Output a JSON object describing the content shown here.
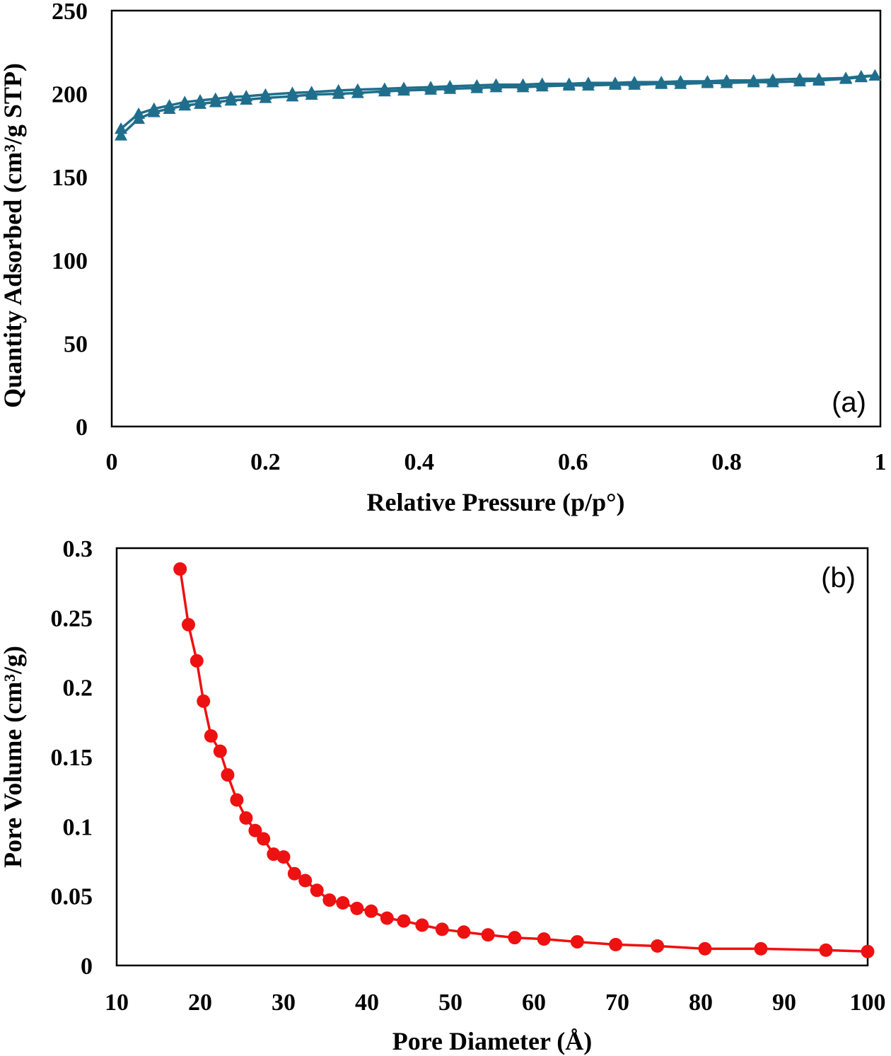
{
  "chart_data": [
    {
      "type": "line",
      "panel_label": "(a)",
      "xlabel": "Relative Pressure (p/p°)",
      "ylabel": "Quantity Adsorbed (cm³/g STP)",
      "xlim": [
        0,
        1
      ],
      "ylim": [
        0,
        250
      ],
      "xticks": [
        0,
        0.2,
        0.4,
        0.6,
        0.8,
        1
      ],
      "xtick_labels": [
        "0",
        "0.2",
        "0.4",
        "0.6",
        "0.8",
        "1"
      ],
      "yticks": [
        0,
        50,
        100,
        150,
        200,
        250
      ],
      "ytick_labels": [
        "0",
        "50",
        "100",
        "150",
        "200",
        "250"
      ],
      "grid": false,
      "color": "#1f6e8c",
      "marker": "triangle",
      "series": [
        {
          "x": [
            0.012,
            0.035,
            0.055,
            0.075,
            0.095,
            0.115,
            0.135,
            0.155,
            0.175,
            0.2,
            0.235,
            0.26,
            0.295,
            0.32,
            0.355,
            0.38,
            0.415,
            0.44,
            0.475,
            0.5,
            0.535,
            0.56,
            0.595,
            0.62,
            0.655,
            0.68,
            0.715,
            0.74,
            0.775,
            0.8,
            0.835,
            0.86,
            0.895,
            0.92,
            0.955,
            0.975,
            0.993
          ],
          "values": [
            175,
            185,
            189,
            191,
            193,
            194,
            195,
            196,
            196.5,
            197.5,
            198.5,
            199.5,
            200,
            200.5,
            201.5,
            202,
            202.5,
            203,
            203.5,
            204,
            204,
            204.5,
            205,
            205,
            205.5,
            205.5,
            206,
            206,
            206.5,
            206.5,
            207,
            207,
            207.5,
            208,
            209,
            210,
            211
          ]
        },
        {
          "x": [
            0.012,
            0.035,
            0.055,
            0.075,
            0.095,
            0.115,
            0.135,
            0.155,
            0.175,
            0.2,
            0.235,
            0.26,
            0.295,
            0.32,
            0.355,
            0.38,
            0.415,
            0.44,
            0.475,
            0.5,
            0.535,
            0.56,
            0.595,
            0.62,
            0.655,
            0.68,
            0.715,
            0.74,
            0.775,
            0.8,
            0.835,
            0.86,
            0.895,
            0.92,
            0.955,
            0.975,
            0.993
          ],
          "values": [
            179,
            188,
            191,
            193,
            195,
            196,
            197,
            198,
            198.5,
            199.5,
            200.5,
            201,
            202,
            202.5,
            203,
            203.5,
            204,
            204.5,
            205,
            205.5,
            205.5,
            206,
            206,
            206.5,
            206.5,
            207,
            207,
            207.5,
            207.5,
            208,
            208,
            208.5,
            209,
            209,
            209.5,
            210.5,
            211
          ]
        }
      ]
    },
    {
      "type": "line",
      "panel_label": "(b)",
      "xlabel": "Pore Diameter (Å)",
      "ylabel": "Pore Volume (cm³/g)",
      "xlim": [
        10,
        100
      ],
      "ylim": [
        0,
        0.3
      ],
      "xticks": [
        10,
        20,
        30,
        40,
        50,
        60,
        70,
        80,
        90,
        100
      ],
      "xtick_labels": [
        "10",
        "20",
        "30",
        "40",
        "50",
        "60",
        "70",
        "80",
        "90",
        "100"
      ],
      "yticks": [
        0,
        0.05,
        0.1,
        0.15,
        0.2,
        0.25,
        0.3
      ],
      "ytick_labels": [
        "0",
        "0.05",
        "0.1",
        "0.15",
        "0.2",
        "0.25",
        "0.3"
      ],
      "grid": false,
      "color": "#ee1111",
      "marker": "circle",
      "series": [
        {
          "x": [
            17.6,
            18.6,
            19.6,
            20.4,
            21.3,
            22.4,
            23.3,
            24.4,
            25.5,
            26.6,
            27.6,
            28.8,
            30.0,
            31.3,
            32.6,
            34.0,
            35.5,
            37.1,
            38.8,
            40.5,
            42.4,
            44.4,
            46.6,
            49.0,
            51.6,
            54.5,
            57.7,
            61.2,
            65.2,
            69.8,
            74.8,
            80.5,
            87.2,
            95.0,
            100
          ],
          "values": [
            0.285,
            0.245,
            0.219,
            0.19,
            0.165,
            0.154,
            0.137,
            0.119,
            0.106,
            0.097,
            0.091,
            0.08,
            0.078,
            0.066,
            0.061,
            0.054,
            0.047,
            0.045,
            0.041,
            0.039,
            0.034,
            0.032,
            0.029,
            0.026,
            0.024,
            0.022,
            0.02,
            0.019,
            0.017,
            0.015,
            0.014,
            0.012,
            0.012,
            0.011,
            0.01
          ]
        }
      ]
    }
  ]
}
